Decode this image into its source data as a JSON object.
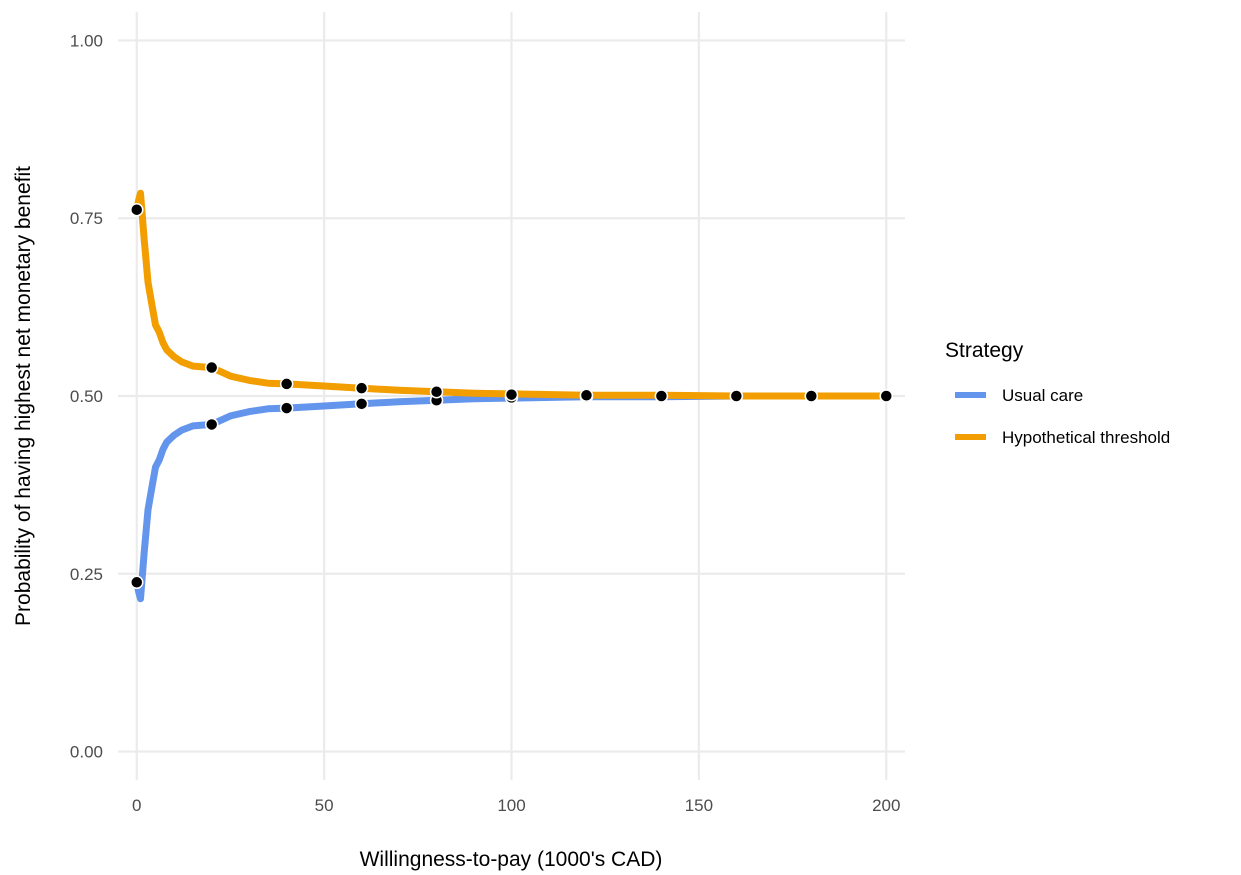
{
  "chart_data": {
    "type": "line",
    "xlabel": "Willingness-to-pay (1000's CAD)",
    "ylabel": "Probability of having highest net monetary benefit",
    "xlim": [
      -5,
      205
    ],
    "ylim": [
      -0.04,
      1.04
    ],
    "x_ticks": [
      0,
      50,
      100,
      150,
      200
    ],
    "x_tick_labels": [
      "0",
      "50",
      "100",
      "150",
      "200"
    ],
    "y_ticks": [
      0,
      0.25,
      0.5,
      0.75,
      1.0
    ],
    "y_tick_labels": [
      "0.00",
      "0.25",
      "0.50",
      "0.75",
      "1.00"
    ],
    "grid": true,
    "legend": {
      "title": "Strategy",
      "position": "right"
    },
    "series": [
      {
        "name": "Usual care",
        "color": "#6495ED",
        "x": [
          0,
          0.5,
          1,
          2,
          3,
          4,
          5,
          6,
          7,
          8,
          10,
          12,
          15,
          20,
          25,
          30,
          35,
          40,
          50,
          60,
          70,
          80,
          90,
          100,
          120,
          140,
          160,
          180,
          200
        ],
        "values": [
          0.238,
          0.225,
          0.215,
          0.28,
          0.34,
          0.37,
          0.4,
          0.41,
          0.425,
          0.435,
          0.445,
          0.452,
          0.458,
          0.46,
          0.472,
          0.478,
          0.482,
          0.483,
          0.486,
          0.489,
          0.492,
          0.494,
          0.496,
          0.497,
          0.499,
          0.499,
          0.5,
          0.5,
          0.5
        ],
        "markers_x": [
          0,
          20,
          40,
          60,
          80,
          100,
          120,
          140,
          160,
          180,
          200
        ],
        "markers_y": [
          0.238,
          0.46,
          0.483,
          0.489,
          0.494,
          0.498,
          0.499,
          0.5,
          0.5,
          0.5,
          0.5
        ]
      },
      {
        "name": "Hypothetical threshold",
        "color": "#F29D00",
        "x": [
          0,
          0.5,
          1,
          2,
          3,
          4,
          5,
          6,
          7,
          8,
          10,
          12,
          15,
          20,
          25,
          30,
          35,
          40,
          50,
          60,
          70,
          80,
          90,
          100,
          120,
          140,
          160,
          180,
          200
        ],
        "values": [
          0.762,
          0.775,
          0.785,
          0.72,
          0.66,
          0.63,
          0.6,
          0.59,
          0.575,
          0.565,
          0.555,
          0.548,
          0.542,
          0.54,
          0.528,
          0.522,
          0.518,
          0.517,
          0.514,
          0.511,
          0.508,
          0.506,
          0.504,
          0.503,
          0.501,
          0.501,
          0.5,
          0.5,
          0.5
        ],
        "markers_x": [
          0,
          20,
          40,
          60,
          80,
          100,
          120,
          140,
          160,
          180,
          200
        ],
        "markers_y": [
          0.762,
          0.54,
          0.517,
          0.511,
          0.506,
          0.502,
          0.501,
          0.5,
          0.5,
          0.5,
          0.5
        ]
      }
    ]
  }
}
